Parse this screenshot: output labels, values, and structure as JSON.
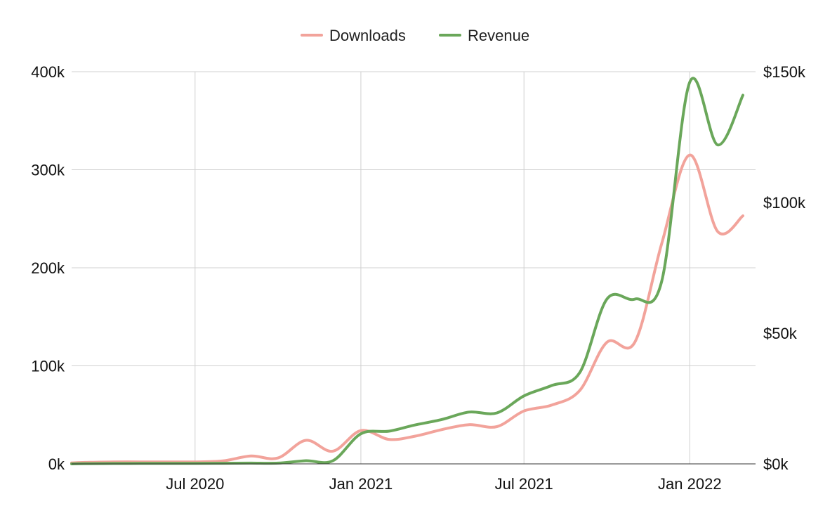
{
  "chart_data": {
    "type": "line",
    "legend_position": "top-center",
    "grid": true,
    "x_tick_labels": [
      "Jul 2020",
      "Jan 2021",
      "Jul 2021",
      "Jan 2022"
    ],
    "x_ticks": [
      "2020-07-01",
      "2021-01-01",
      "2021-07-01",
      "2022-01-01"
    ],
    "xlim": [
      "2020-02-15",
      "2022-03-15"
    ],
    "y_left": {
      "ticks": [
        "0k",
        "100k",
        "200k",
        "300k",
        "400k"
      ],
      "ylim": [
        0,
        400000
      ]
    },
    "y_right": {
      "ticks": [
        "$0k",
        "$50k",
        "$100k",
        "$150k"
      ],
      "ylim": [
        0,
        150000
      ]
    },
    "series": [
      {
        "name": "Downloads",
        "axis": "left",
        "color": "#f2a39b",
        "points": [
          [
            "2020-02-15",
            1000
          ],
          [
            "2020-03-01",
            1500
          ],
          [
            "2020-04-01",
            2000
          ],
          [
            "2020-05-01",
            2000
          ],
          [
            "2020-06-01",
            2000
          ],
          [
            "2020-07-01",
            2000
          ],
          [
            "2020-08-01",
            3000
          ],
          [
            "2020-09-01",
            8000
          ],
          [
            "2020-10-01",
            6000
          ],
          [
            "2020-11-01",
            24000
          ],
          [
            "2020-12-01",
            13000
          ],
          [
            "2021-01-01",
            34000
          ],
          [
            "2021-02-01",
            25000
          ],
          [
            "2021-03-01",
            28000
          ],
          [
            "2021-04-01",
            35000
          ],
          [
            "2021-05-01",
            40000
          ],
          [
            "2021-06-01",
            38000
          ],
          [
            "2021-07-01",
            54000
          ],
          [
            "2021-08-01",
            60000
          ],
          [
            "2021-09-01",
            75000
          ],
          [
            "2021-10-01",
            124000
          ],
          [
            "2021-11-01",
            124000
          ],
          [
            "2021-12-01",
            225000
          ],
          [
            "2022-01-01",
            315000
          ],
          [
            "2022-02-01",
            237000
          ],
          [
            "2022-03-01",
            253000
          ]
        ]
      },
      {
        "name": "Revenue",
        "axis": "right",
        "color": "#6aa75a",
        "points": [
          [
            "2020-02-15",
            0
          ],
          [
            "2020-03-01",
            100
          ],
          [
            "2020-04-01",
            150
          ],
          [
            "2020-05-01",
            200
          ],
          [
            "2020-06-01",
            200
          ],
          [
            "2020-07-01",
            200
          ],
          [
            "2020-08-01",
            250
          ],
          [
            "2020-09-01",
            300
          ],
          [
            "2020-10-01",
            300
          ],
          [
            "2020-11-01",
            1200
          ],
          [
            "2020-12-01",
            1200
          ],
          [
            "2021-01-01",
            11500
          ],
          [
            "2021-02-01",
            12500
          ],
          [
            "2021-03-01",
            14800
          ],
          [
            "2021-04-01",
            17000
          ],
          [
            "2021-05-01",
            19800
          ],
          [
            "2021-06-01",
            19500
          ],
          [
            "2021-07-01",
            26000
          ],
          [
            "2021-08-01",
            30000
          ],
          [
            "2021-09-01",
            35000
          ],
          [
            "2021-10-01",
            63000
          ],
          [
            "2021-11-01",
            63000
          ],
          [
            "2021-12-01",
            70000
          ],
          [
            "2022-01-01",
            146000
          ],
          [
            "2022-02-01",
            122000
          ],
          [
            "2022-03-01",
            141000
          ]
        ]
      }
    ]
  }
}
